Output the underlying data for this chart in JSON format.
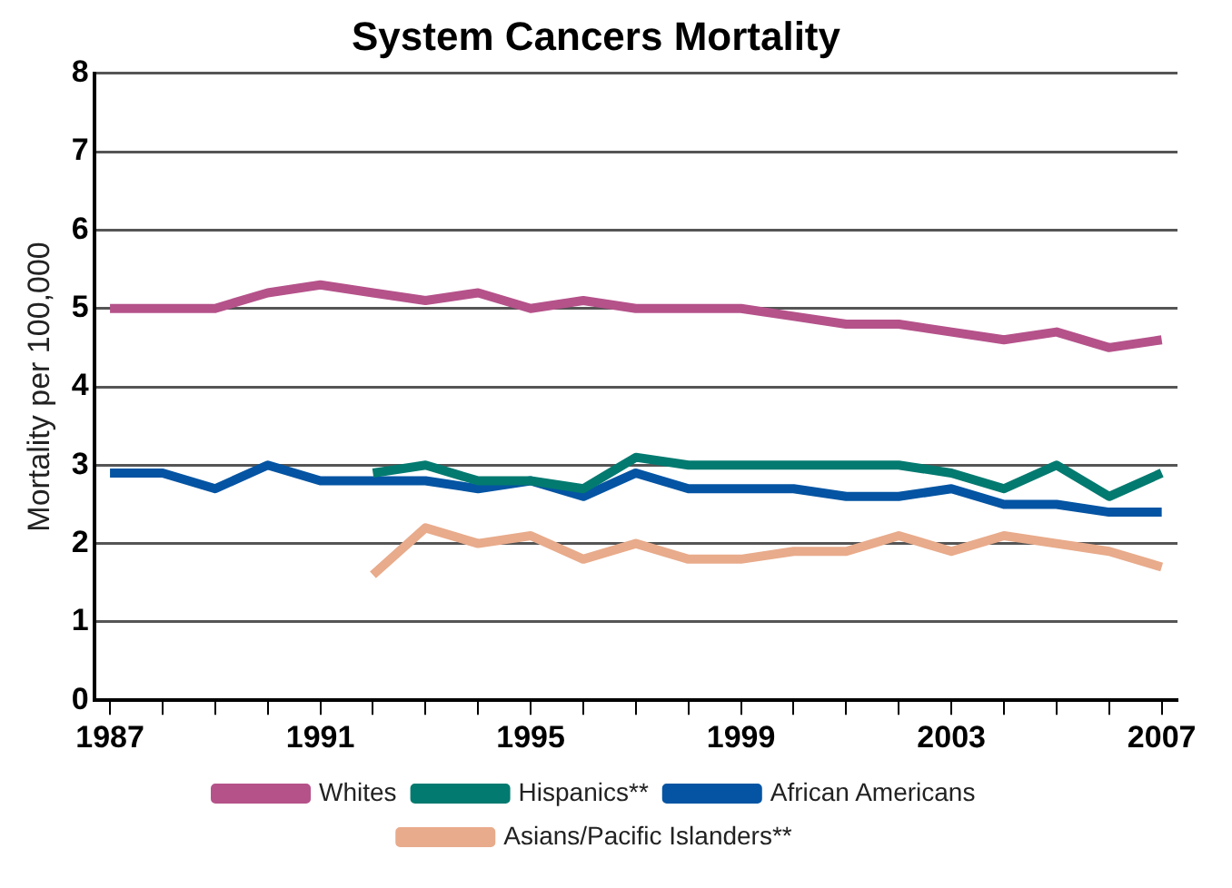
{
  "chart_data": {
    "type": "line",
    "title": "System Cancers Mortality",
    "ylabel": "Mortality per 100,000",
    "x": [
      1987,
      1988,
      1989,
      1990,
      1991,
      1992,
      1993,
      1994,
      1995,
      1996,
      1997,
      1998,
      1999,
      2000,
      2001,
      2002,
      2003,
      2004,
      2005,
      2006,
      2007
    ],
    "series": [
      {
        "name": "Whites",
        "color": "#b5528a",
        "values": [
          5.0,
          5.0,
          5.0,
          5.2,
          5.3,
          5.2,
          5.1,
          5.2,
          5.0,
          5.1,
          5.0,
          5.0,
          5.0,
          4.9,
          4.8,
          4.8,
          4.7,
          4.6,
          4.7,
          4.5,
          4.6
        ]
      },
      {
        "name": "Hispanics**",
        "color": "#037a70",
        "values": [
          null,
          null,
          null,
          null,
          null,
          2.9,
          3.0,
          2.8,
          2.8,
          2.7,
          3.1,
          3.0,
          3.0,
          3.0,
          3.0,
          3.0,
          2.9,
          2.7,
          3.0,
          2.6,
          2.9
        ]
      },
      {
        "name": "African Americans",
        "color": "#0454a3",
        "values": [
          2.9,
          2.9,
          2.7,
          3.0,
          2.8,
          2.8,
          2.8,
          2.7,
          2.8,
          2.6,
          2.9,
          2.7,
          2.7,
          2.7,
          2.6,
          2.6,
          2.7,
          2.5,
          2.5,
          2.4,
          2.4
        ]
      },
      {
        "name": "Asians/Pacific Islanders**",
        "color": "#e8ab8b",
        "values": [
          null,
          null,
          null,
          null,
          null,
          1.6,
          2.2,
          2.0,
          2.1,
          1.8,
          2.0,
          1.8,
          1.8,
          1.9,
          1.9,
          2.1,
          1.9,
          2.1,
          2.0,
          1.9,
          1.7
        ]
      }
    ],
    "xlim": [
      1986.7,
      2007.3
    ],
    "xticks": [
      1987,
      {
        "value": 1988,
        "label": null
      },
      {
        "value": 1989,
        "label": null
      },
      {
        "value": 1990,
        "label": null
      },
      1991,
      {
        "value": 1992,
        "label": null
      },
      {
        "value": 1993,
        "label": null
      },
      {
        "value": 1994,
        "label": null
      },
      1995,
      {
        "value": 1996,
        "label": null
      },
      {
        "value": 1997,
        "label": null
      },
      {
        "value": 1998,
        "label": null
      },
      1999,
      {
        "value": 2000,
        "label": null
      },
      {
        "value": 2001,
        "label": null
      },
      {
        "value": 2002,
        "label": null
      },
      2003,
      {
        "value": 2004,
        "label": null
      },
      {
        "value": 2005,
        "label": null
      },
      {
        "value": 2006,
        "label": null
      },
      2007
    ],
    "ylim": [
      0,
      8
    ],
    "yticks": [
      0,
      1,
      2,
      3,
      4,
      5,
      6,
      7,
      8
    ],
    "grid": "y",
    "legend": "bottom",
    "marker": "none",
    "line_style": "solid"
  }
}
